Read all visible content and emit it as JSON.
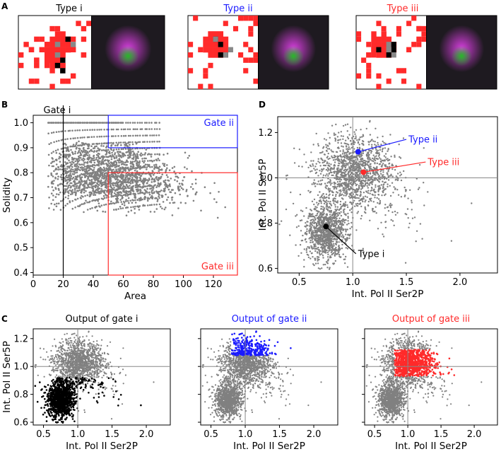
{
  "panel_labels": {
    "A": "A",
    "B": "B",
    "C": "C",
    "D": "D"
  },
  "panel_a": {
    "types": [
      {
        "title": "Type i",
        "color": "#000000"
      },
      {
        "title": "Type ii",
        "color": "#1a1aff"
      },
      {
        "title": "Type iii",
        "color": "#ff2a2a"
      }
    ]
  },
  "colors": {
    "gray": "#808080",
    "blue": "#1a1aff",
    "red": "#ff2a2a",
    "black": "#000000",
    "magenta": "#e040e8",
    "green": "#20c020"
  },
  "chart_data": [
    {
      "id": "B",
      "type": "scatter",
      "xlabel": "Area",
      "ylabel": "Solidity",
      "xlim": [
        0,
        136
      ],
      "ylim": [
        0.39,
        1.03
      ],
      "xticks": [
        "0",
        "20",
        "40",
        "60",
        "80",
        "100",
        "120"
      ],
      "xtick_values": [
        0,
        20,
        40,
        60,
        80,
        100,
        120
      ],
      "yticks": [
        "0.4",
        "0.5",
        "0.6",
        "0.7",
        "0.8",
        "0.9",
        "1.0"
      ],
      "ytick_values": [
        0.4,
        0.5,
        0.6,
        0.7,
        0.8,
        0.9,
        1.0
      ],
      "gates": [
        {
          "label": "Gate i",
          "kind": "vline",
          "x": 20,
          "color": "#000000"
        },
        {
          "label": "Gate ii",
          "kind": "rect",
          "x": [
            50,
            136
          ],
          "y": [
            0.9,
            1.03
          ],
          "color": "#1a1aff"
        },
        {
          "label": "Gate iii",
          "kind": "rect",
          "x": [
            50,
            136
          ],
          "y": [
            0.39,
            0.8
          ],
          "color": "#ff2a2a"
        }
      ]
    },
    {
      "id": "D",
      "type": "scatter",
      "xlabel": "Int. Pol II Ser2P",
      "ylabel": "Int. Pol II Ser5P",
      "xlim": [
        0.3,
        2.35
      ],
      "ylim": [
        0.58,
        1.27
      ],
      "xticks": [
        "0.5",
        "1.0",
        "1.5",
        "2.0"
      ],
      "xtick_values": [
        0.5,
        1.0,
        1.5,
        2.0
      ],
      "yticks": [
        "0.6",
        "0.8",
        "1.0",
        "1.2"
      ],
      "ytick_values": [
        0.6,
        0.8,
        1.0,
        1.2
      ],
      "reference_lines": {
        "x": 1.0,
        "y": 1.0
      },
      "annotations": [
        {
          "label": "Type ii",
          "x": 1.05,
          "y": 1.115,
          "color": "#1a1aff",
          "text_x": 1.52,
          "text_y": 1.17
        },
        {
          "label": "Type iii",
          "x": 1.1,
          "y": 1.025,
          "color": "#ff2a2a",
          "text_x": 1.7,
          "text_y": 1.07
        },
        {
          "label": "Type i",
          "x": 0.75,
          "y": 0.785,
          "color": "#000000",
          "text_x": 1.05,
          "text_y": 0.665
        }
      ]
    },
    {
      "id": "C1",
      "type": "scatter",
      "title": "Output of gate i",
      "title_color": "#000000",
      "highlight_color": "#000000",
      "xlabel": "Int. Pol II Ser2P",
      "ylabel": "Int. Pol II Ser5P",
      "xlim": [
        0.35,
        2.35
      ],
      "ylim": [
        0.58,
        1.27
      ],
      "xticks": [
        "0.5",
        "1.0",
        "1.5",
        "2.0"
      ],
      "xtick_values": [
        0.5,
        1.0,
        1.5,
        2.0
      ],
      "yticks": [
        "0.6",
        "0.8",
        "1.0",
        "1.2"
      ],
      "ytick_values": [
        0.6,
        0.8,
        1.0,
        1.2
      ]
    },
    {
      "id": "C2",
      "type": "scatter",
      "title": "Output of gate ii",
      "title_color": "#1a1aff",
      "highlight_color": "#1a1aff",
      "xlabel": "Int. Pol II Ser2P",
      "xlim": [
        0.35,
        2.35
      ],
      "ylim": [
        0.58,
        1.27
      ],
      "xticks": [
        "0.5",
        "1.0",
        "1.5",
        "2.0"
      ],
      "xtick_values": [
        0.5,
        1.0,
        1.5,
        2.0
      ]
    },
    {
      "id": "C3",
      "type": "scatter",
      "title": "Output of gate iii",
      "title_color": "#ff2a2a",
      "highlight_color": "#ff2a2a",
      "xlabel": "Int. Pol II Ser2P",
      "xlim": [
        0.35,
        2.35
      ],
      "ylim": [
        0.58,
        1.27
      ],
      "xticks": [
        "0.5",
        "1.0",
        "1.5",
        "2.0"
      ],
      "xtick_values": [
        0.5,
        1.0,
        1.5,
        2.0
      ]
    }
  ]
}
